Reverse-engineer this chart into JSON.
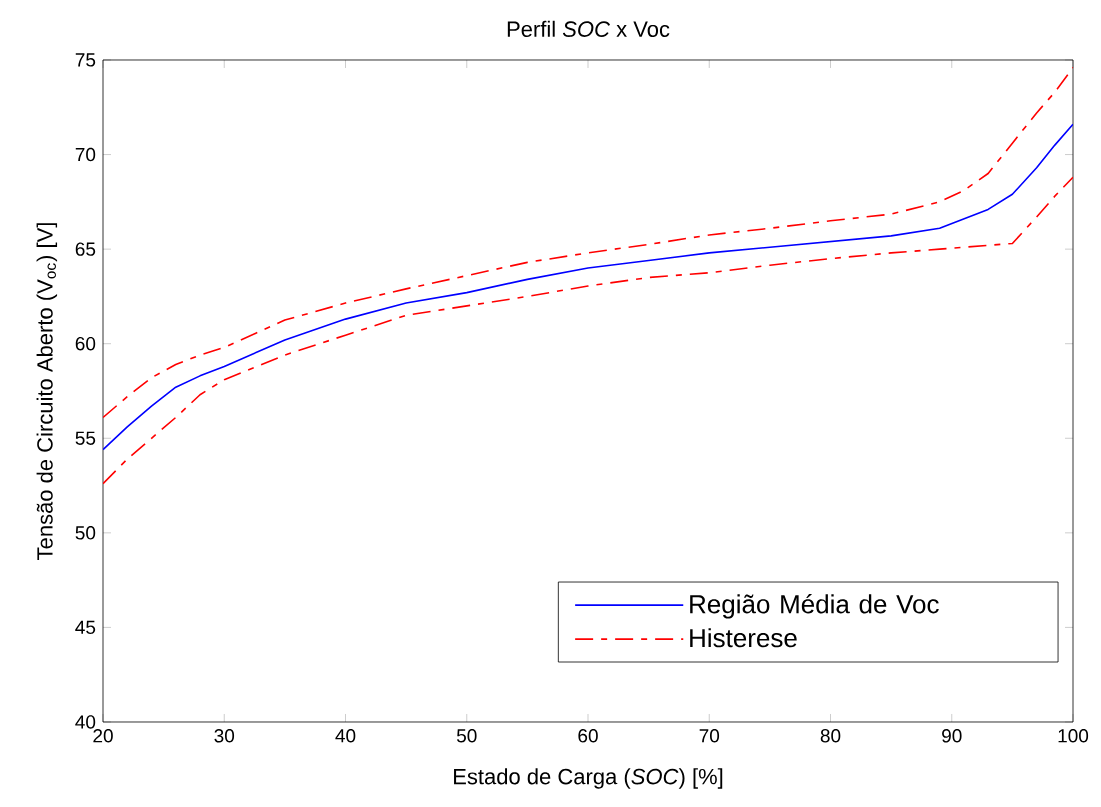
{
  "chart_data": {
    "type": "line",
    "title": "Perfil *SOC* x Voc",
    "xlabel": "Estado de Carga (*SOC*) [%]",
    "ylabel": "Tensão de Circuito Aberto (V$_{oc}$) [V]",
    "x": [
      20,
      22,
      24,
      26,
      28,
      30,
      35,
      40,
      45,
      50,
      55,
      60,
      65,
      70,
      75,
      80,
      85,
      89,
      91,
      93,
      95,
      97,
      98.5,
      100
    ],
    "xlim": [
      20,
      100
    ],
    "xticks": [
      20,
      30,
      40,
      50,
      60,
      70,
      80,
      90,
      100
    ],
    "ylim": [
      40,
      75
    ],
    "yticks": [
      40,
      45,
      50,
      55,
      60,
      65,
      70,
      75
    ],
    "legend": "bottom right",
    "grid": false,
    "series": [
      {
        "name": "Região Média de Voc",
        "color": "#0000ff",
        "line_style": "solid",
        "values": [
          54.4,
          55.6,
          56.7,
          57.7,
          58.3,
          58.8,
          60.2,
          61.3,
          62.15,
          62.7,
          63.4,
          64.0,
          64.4,
          64.8,
          65.1,
          65.4,
          65.7,
          66.1,
          66.6,
          67.1,
          67.9,
          69.3,
          70.5,
          71.6
        ]
      },
      {
        "name": "Histerese",
        "color": "#ff0000",
        "line_style": "dashed",
        "values": [
          56.1,
          57.2,
          58.2,
          58.9,
          59.4,
          59.8,
          61.25,
          62.15,
          62.9,
          63.6,
          64.3,
          64.8,
          65.25,
          65.75,
          66.1,
          66.5,
          66.85,
          67.5,
          68.1,
          69.0,
          70.6,
          72.2,
          73.3,
          74.6
        ]
      },
      {
        "color": "#ff0000",
        "line_style": "dashed",
        "values": [
          52.6,
          53.9,
          55.0,
          56.1,
          57.3,
          58.1,
          59.4,
          60.45,
          61.5,
          62.0,
          62.5,
          63.05,
          63.5,
          63.75,
          64.15,
          64.5,
          64.8,
          65.0,
          65.1,
          65.2,
          65.3,
          66.7,
          67.8,
          68.8
        ]
      }
    ]
  }
}
